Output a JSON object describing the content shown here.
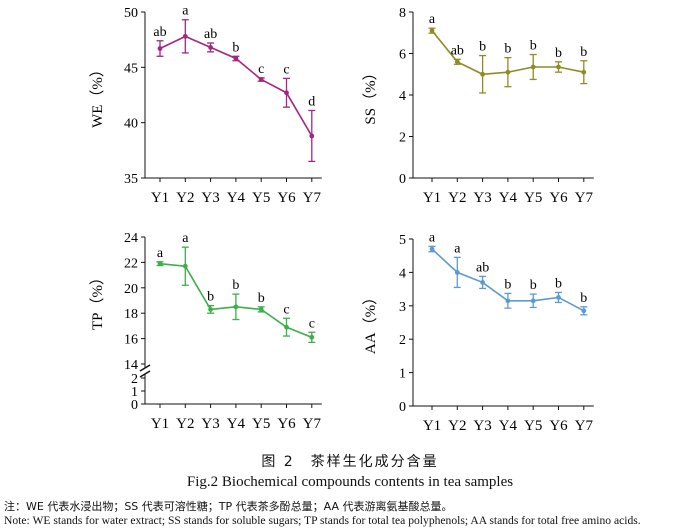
{
  "chart_data": [
    {
      "type": "line",
      "ylabel": "WE（%）",
      "categories": [
        "Y1",
        "Y2",
        "Y3",
        "Y4",
        "Y5",
        "Y6",
        "Y7"
      ],
      "values": [
        46.7,
        47.8,
        46.8,
        45.8,
        43.9,
        42.7,
        38.8
      ],
      "errors": [
        0.7,
        1.5,
        0.4,
        0.2,
        0.15,
        1.3,
        2.3
      ],
      "letters": [
        "ab",
        "a",
        "ab",
        "b",
        "c",
        "c",
        "d"
      ],
      "ylim": [
        35,
        50
      ],
      "yticks": [
        "35",
        "40",
        "45",
        "50"
      ],
      "color": "#a3277f"
    },
    {
      "type": "line",
      "ylabel": "SS（%）",
      "categories": [
        "Y1",
        "Y2",
        "Y3",
        "Y4",
        "Y5",
        "Y6",
        "Y7"
      ],
      "values": [
        7.1,
        5.6,
        5.0,
        5.1,
        5.35,
        5.35,
        5.1
      ],
      "errors": [
        0.12,
        0.12,
        0.9,
        0.7,
        0.6,
        0.25,
        0.55
      ],
      "letters": [
        "a",
        "ab",
        "b",
        "b",
        "b",
        "b",
        "b"
      ],
      "ylim": [
        0,
        8
      ],
      "yticks": [
        "0",
        "2",
        "4",
        "6",
        "8"
      ],
      "color": "#8f8c25"
    },
    {
      "type": "line",
      "ylabel": "TP（%）",
      "categories": [
        "Y1",
        "Y2",
        "Y3",
        "Y4",
        "Y5",
        "Y6",
        "Y7"
      ],
      "values": [
        21.9,
        21.7,
        18.3,
        18.5,
        18.3,
        16.9,
        16.1
      ],
      "errors": [
        0.15,
        1.5,
        0.3,
        1.0,
        0.2,
        0.7,
        0.4
      ],
      "letters": [
        "a",
        "a",
        "b",
        "b",
        "b",
        "c",
        "c"
      ],
      "ylim": [
        14,
        24
      ],
      "yticks": [
        "14",
        "16",
        "18",
        "20",
        "22",
        "24"
      ],
      "lower_ticks": [
        "0",
        "1",
        "2"
      ],
      "axis_break": true,
      "color": "#3cae4a"
    },
    {
      "type": "line",
      "ylabel": "AA（%）",
      "categories": [
        "Y1",
        "Y2",
        "Y3",
        "Y4",
        "Y5",
        "Y6",
        "Y7"
      ],
      "values": [
        4.7,
        4.0,
        3.7,
        3.15,
        3.15,
        3.25,
        2.85
      ],
      "errors": [
        0.08,
        0.45,
        0.18,
        0.22,
        0.2,
        0.15,
        0.12
      ],
      "letters": [
        "a",
        "a",
        "ab",
        "b",
        "b",
        "b",
        "b"
      ],
      "ylim": [
        0,
        5
      ],
      "yticks": [
        "0",
        "1",
        "2",
        "3",
        "4",
        "5"
      ],
      "color": "#5b9bd1"
    }
  ],
  "caption": {
    "cn": "图 2　茶样生化成分含量",
    "en": "Fig.2 Biochemical compounds contents in tea samples"
  },
  "notes": {
    "cn": "注：WE 代表水浸出物；SS 代表可溶性糖；TP 代表茶多酚总量；AA 代表游离氨基酸总量。",
    "en": "Note: WE stands for water extract; SS stands for soluble sugars; TP stands for total tea polyphenols; AA stands for total free amino acids."
  }
}
